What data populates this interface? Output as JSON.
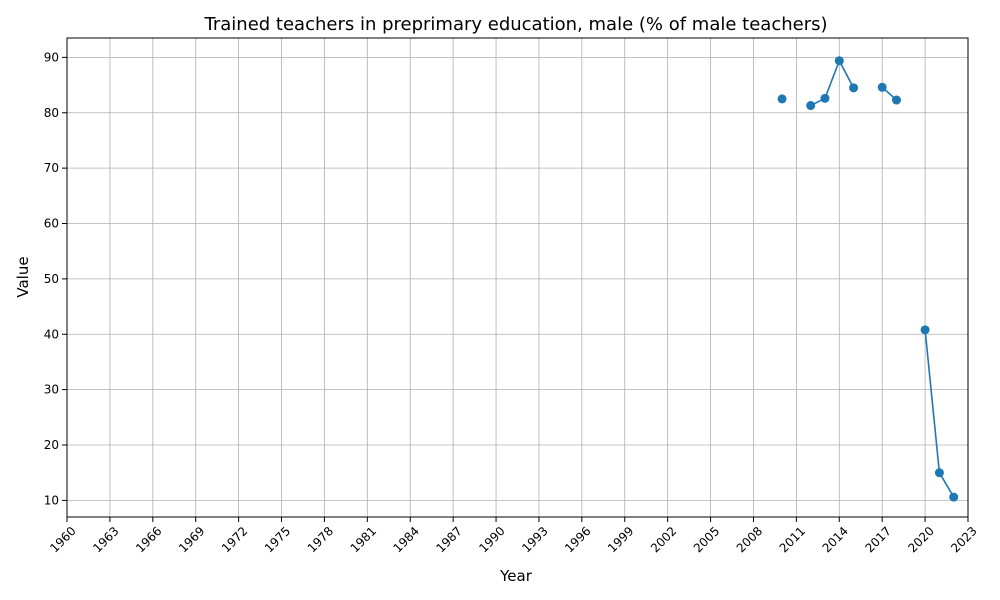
{
  "chart_data": {
    "type": "line",
    "title": "Trained teachers in preprimary education, male (% of male teachers)",
    "xlabel": "Year",
    "ylabel": "Value",
    "xlim": [
      1960,
      2023
    ],
    "ylim": [
      7,
      93.5
    ],
    "x_ticks": [
      1960,
      1963,
      1966,
      1969,
      1972,
      1975,
      1978,
      1981,
      1984,
      1987,
      1990,
      1993,
      1996,
      1999,
      2002,
      2005,
      2008,
      2011,
      2014,
      2017,
      2020,
      2023
    ],
    "y_ticks": [
      10,
      20,
      30,
      40,
      50,
      60,
      70,
      80,
      90
    ],
    "grid": true,
    "series": [
      {
        "color": "#1f77b4",
        "marker": "circle",
        "x": [
          2010,
          2011,
          2012,
          2013,
          2014,
          2015,
          2016,
          2017,
          2018,
          2019,
          2020,
          2021,
          2022
        ],
        "y": [
          82.5,
          null,
          81.3,
          82.6,
          89.4,
          84.5,
          null,
          84.6,
          82.3,
          null,
          40.8,
          15.0,
          10.6
        ]
      }
    ]
  }
}
